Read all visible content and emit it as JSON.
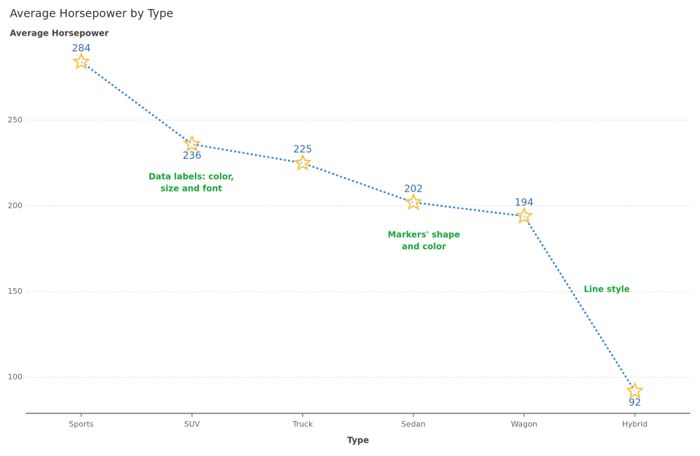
{
  "chart_data": {
    "type": "line",
    "title": "Average Horsepower by Type",
    "y_label": "Average Horsepower",
    "x_label": "Type",
    "categories": [
      "Sports",
      "SUV",
      "Truck",
      "Sedan",
      "Wagon",
      "Hybrid"
    ],
    "series": [
      {
        "name": "Average Horsepower",
        "color": "#3a86d6",
        "marker_color": "#f5c342",
        "marker": "star",
        "line_style": "dotted",
        "values": [
          284,
          236,
          225,
          202,
          194,
          92
        ]
      }
    ],
    "ylim": [
      79,
      296
    ],
    "yticks": [
      100,
      150,
      200,
      250
    ],
    "grid": true,
    "annotations": [
      [
        "Data labels: color,",
        "size and font"
      ],
      [
        "Markers' shape",
        "and color"
      ],
      [
        "Line style"
      ]
    ],
    "annotation_color": "#1aa33a"
  }
}
